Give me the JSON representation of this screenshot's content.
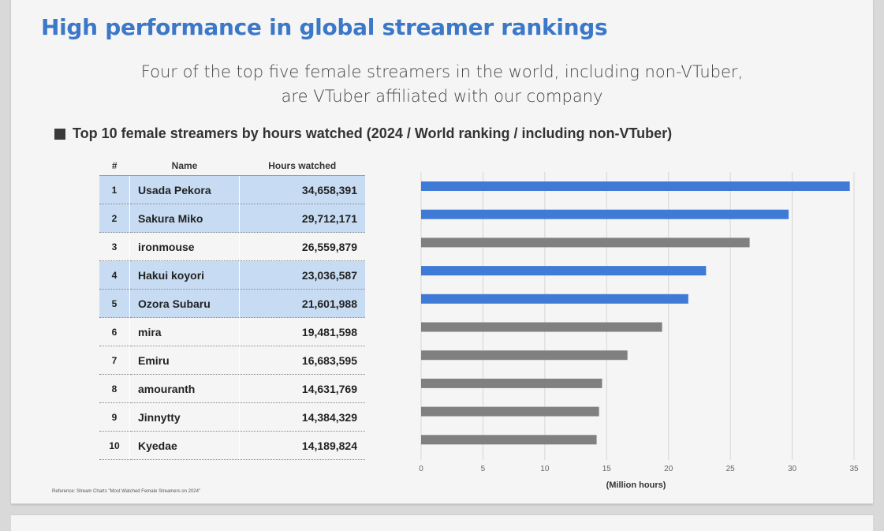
{
  "title": "High performance in global streamer rankings",
  "subtitle_line1": "Four of the top five female streamers in the world, including non-VTuber,",
  "subtitle_line2": "are VTuber affiliated with our company",
  "section_heading": "Top 10 female streamers by hours watched (2024 / World ranking / including non-VTuber)",
  "table": {
    "headers": [
      "#",
      "Name",
      "Hours watched"
    ],
    "rows": [
      {
        "rank": "1",
        "name": "Usada Pekora",
        "hours": "34,658,391",
        "highlight": true
      },
      {
        "rank": "2",
        "name": "Sakura Miko",
        "hours": "29,712,171",
        "highlight": true
      },
      {
        "rank": "3",
        "name": "ironmouse",
        "hours": "26,559,879",
        "highlight": false
      },
      {
        "rank": "4",
        "name": "Hakui koyori",
        "hours": "23,036,587",
        "highlight": true
      },
      {
        "rank": "5",
        "name": "Ozora Subaru",
        "hours": "21,601,988",
        "highlight": true
      },
      {
        "rank": "6",
        "name": "mira",
        "hours": "19,481,598",
        "highlight": false
      },
      {
        "rank": "7",
        "name": "Emiru",
        "hours": "16,683,595",
        "highlight": false
      },
      {
        "rank": "8",
        "name": "amouranth",
        "hours": "14,631,769",
        "highlight": false
      },
      {
        "rank": "9",
        "name": "Jinnytty",
        "hours": "14,384,329",
        "highlight": false
      },
      {
        "rank": "10",
        "name": "Kyedae",
        "hours": "14,189,824",
        "highlight": false
      }
    ]
  },
  "reference": "Reference:  Stream Charts \"Most Watched Female Streamers on 2024\"",
  "colors": {
    "title": "#3c78c8",
    "affiliated_bar": "#3f7ad6",
    "other_bar": "#808080",
    "highlight_row": "#c7dcf3"
  },
  "chart_data": {
    "type": "bar",
    "orientation": "horizontal",
    "categories": [
      "Usada Pekora",
      "Sakura Miko",
      "ironmouse",
      "Hakui koyori",
      "Ozora Subaru",
      "mira",
      "Emiru",
      "amouranth",
      "Jinnytty",
      "Kyedae"
    ],
    "values": [
      34.658391,
      29.712171,
      26.559879,
      23.036587,
      21.601988,
      19.481598,
      16.683595,
      14.631769,
      14.384329,
      14.189824
    ],
    "affiliated": [
      true,
      true,
      false,
      true,
      true,
      false,
      false,
      false,
      false,
      false
    ],
    "xlabel": "(Million hours)",
    "xlim": [
      0,
      35
    ],
    "xticks": [
      0,
      5,
      10,
      15,
      20,
      25,
      30,
      35
    ],
    "grid": true
  }
}
